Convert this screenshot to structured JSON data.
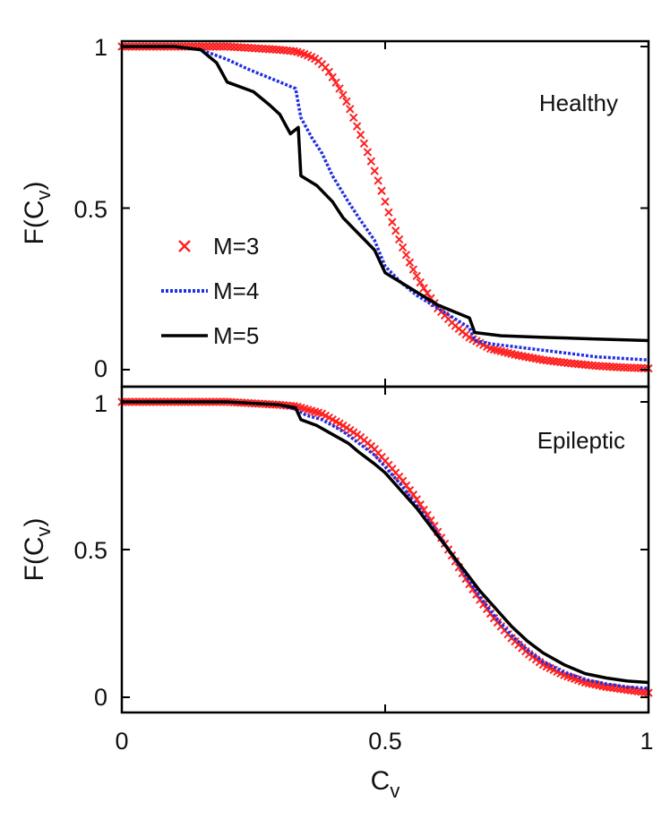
{
  "chart_data": [
    {
      "type": "line",
      "title": "",
      "panel_label": "Healthy",
      "xlabel": "",
      "ylabel": {
        "base": "F(C",
        "sub": "v",
        "close": ")"
      },
      "xlim": [
        0,
        1
      ],
      "ylim": [
        -0.05,
        1.05
      ],
      "yticks": [
        0,
        0.5,
        1
      ],
      "ytick_labels": [
        "0",
        "0.5",
        "1"
      ],
      "legend": {
        "placement": "center-left",
        "entries": [
          {
            "label": "M=3",
            "marker": "x",
            "color": "#ff2020"
          },
          {
            "label": "M=4",
            "line": "dotted",
            "color": "#2030e0"
          },
          {
            "label": "M=5",
            "line": "solid",
            "color": "#000000"
          }
        ]
      },
      "series": [
        {
          "name": "M=3",
          "style": "marker-x",
          "color": "#ff2020",
          "x": [
            0,
            0.05,
            0.1,
            0.15,
            0.2,
            0.25,
            0.3,
            0.33,
            0.35,
            0.37,
            0.39,
            0.41,
            0.43,
            0.45,
            0.47,
            0.49,
            0.51,
            0.53,
            0.55,
            0.57,
            0.6,
            0.63,
            0.66,
            0.7,
            0.75,
            0.8,
            0.85,
            0.9,
            0.95,
            1.0
          ],
          "y": [
            1.0,
            1.0,
            1.0,
            1.0,
            1.0,
            0.995,
            0.99,
            0.985,
            0.975,
            0.96,
            0.93,
            0.88,
            0.82,
            0.74,
            0.66,
            0.57,
            0.47,
            0.39,
            0.32,
            0.26,
            0.19,
            0.14,
            0.1,
            0.065,
            0.045,
            0.03,
            0.02,
            0.012,
            0.007,
            0.004
          ]
        },
        {
          "name": "M=4",
          "style": "dotted",
          "color": "#2030e0",
          "x": [
            0,
            0.1,
            0.15,
            0.2,
            0.24,
            0.27,
            0.3,
            0.33,
            0.34,
            0.36,
            0.38,
            0.4,
            0.43,
            0.45,
            0.48,
            0.5,
            0.53,
            0.56,
            0.6,
            0.63,
            0.66,
            0.67,
            0.7,
            0.75,
            0.8,
            0.85,
            0.9,
            0.95,
            1.0
          ],
          "y": [
            1.0,
            1.0,
            0.99,
            0.96,
            0.93,
            0.91,
            0.89,
            0.87,
            0.78,
            0.72,
            0.67,
            0.6,
            0.52,
            0.47,
            0.4,
            0.32,
            0.27,
            0.23,
            0.19,
            0.16,
            0.13,
            0.09,
            0.08,
            0.07,
            0.06,
            0.05,
            0.04,
            0.035,
            0.03
          ]
        },
        {
          "name": "M=5",
          "style": "solid",
          "color": "#000000",
          "x": [
            0,
            0.1,
            0.15,
            0.18,
            0.2,
            0.25,
            0.28,
            0.3,
            0.32,
            0.335,
            0.34,
            0.37,
            0.4,
            0.42,
            0.45,
            0.48,
            0.5,
            0.53,
            0.56,
            0.6,
            0.63,
            0.66,
            0.67,
            0.72,
            0.8,
            0.9,
            1.0
          ],
          "y": [
            1.0,
            1.0,
            0.99,
            0.95,
            0.89,
            0.86,
            0.82,
            0.79,
            0.73,
            0.75,
            0.6,
            0.57,
            0.52,
            0.47,
            0.42,
            0.37,
            0.3,
            0.27,
            0.24,
            0.2,
            0.18,
            0.16,
            0.115,
            0.105,
            0.1,
            0.095,
            0.09
          ]
        }
      ]
    },
    {
      "type": "line",
      "title": "",
      "panel_label": "Epileptic",
      "xlabel": {
        "base": "C",
        "sub": "v"
      },
      "ylabel": {
        "base": "F(C",
        "sub": "v",
        "close": ")"
      },
      "xlim": [
        0,
        1
      ],
      "ylim": [
        -0.05,
        1.05
      ],
      "xticks": [
        0,
        0.5,
        1
      ],
      "xtick_labels": [
        "0",
        "0.5",
        "1"
      ],
      "yticks": [
        0,
        0.5,
        1
      ],
      "ytick_labels": [
        "0",
        "0.5",
        "1"
      ],
      "series": [
        {
          "name": "M=3",
          "style": "marker-x",
          "color": "#ff2020",
          "x": [
            0,
            0.1,
            0.2,
            0.25,
            0.3,
            0.33,
            0.35,
            0.38,
            0.4,
            0.42,
            0.45,
            0.48,
            0.5,
            0.53,
            0.56,
            0.59,
            0.62,
            0.65,
            0.68,
            0.71,
            0.74,
            0.77,
            0.8,
            0.84,
            0.88,
            0.92,
            0.96,
            1.0
          ],
          "y": [
            1.0,
            1.0,
            1.0,
            0.995,
            0.99,
            0.985,
            0.975,
            0.96,
            0.94,
            0.92,
            0.885,
            0.84,
            0.8,
            0.74,
            0.67,
            0.59,
            0.5,
            0.41,
            0.33,
            0.26,
            0.2,
            0.15,
            0.11,
            0.075,
            0.05,
            0.035,
            0.025,
            0.015
          ]
        },
        {
          "name": "M=4",
          "style": "dotted",
          "color": "#2030e0",
          "x": [
            0,
            0.1,
            0.2,
            0.3,
            0.33,
            0.35,
            0.38,
            0.4,
            0.42,
            0.45,
            0.48,
            0.5,
            0.53,
            0.56,
            0.59,
            0.62,
            0.65,
            0.68,
            0.71,
            0.74,
            0.77,
            0.8,
            0.84,
            0.88,
            0.92,
            0.96,
            1.0
          ],
          "y": [
            1.0,
            1.0,
            1.0,
            0.99,
            0.975,
            0.955,
            0.94,
            0.92,
            0.9,
            0.86,
            0.82,
            0.78,
            0.72,
            0.65,
            0.58,
            0.5,
            0.42,
            0.34,
            0.27,
            0.21,
            0.16,
            0.12,
            0.085,
            0.06,
            0.045,
            0.035,
            0.03
          ]
        },
        {
          "name": "M=5",
          "style": "solid",
          "color": "#000000",
          "x": [
            0,
            0.1,
            0.2,
            0.3,
            0.33,
            0.34,
            0.37,
            0.4,
            0.43,
            0.45,
            0.48,
            0.5,
            0.53,
            0.56,
            0.59,
            0.62,
            0.65,
            0.68,
            0.71,
            0.74,
            0.77,
            0.8,
            0.84,
            0.88,
            0.92,
            0.96,
            1.0
          ],
          "y": [
            1.0,
            1.0,
            1.0,
            0.99,
            0.98,
            0.94,
            0.92,
            0.89,
            0.86,
            0.83,
            0.79,
            0.76,
            0.7,
            0.64,
            0.57,
            0.5,
            0.43,
            0.36,
            0.3,
            0.24,
            0.19,
            0.15,
            0.11,
            0.08,
            0.065,
            0.055,
            0.05
          ]
        }
      ]
    }
  ]
}
